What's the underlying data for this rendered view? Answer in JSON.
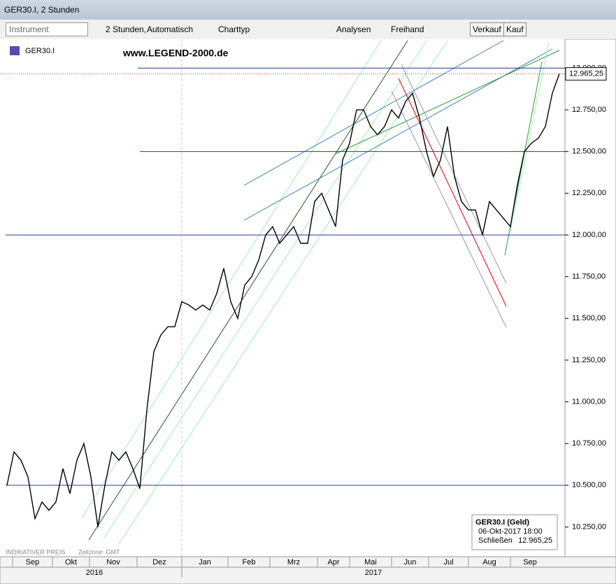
{
  "window": {
    "title": "GER30.I, 2 Stunden"
  },
  "toolbar": {
    "instrument": "Instrument",
    "interval": "2 Stunden,",
    "mode": "Automatisch",
    "chart_type": "Charttyp",
    "analyses": "Analysen",
    "freehand": "Freihand",
    "sell": "Verkauf",
    "buy": "Kauf"
  },
  "chart_data": {
    "type": "line",
    "symbol": "GER30.I",
    "watermark": "www.LEGEND-2000.de",
    "color": "#000000",
    "values": [
      10500,
      10700,
      10650,
      10550,
      10300,
      10400,
      10350,
      10400,
      10600,
      10450,
      10650,
      10750,
      10550,
      10250,
      10500,
      10700,
      10650,
      10700,
      10600,
      10480,
      10950,
      11300,
      11400,
      11450,
      11450,
      11600,
      11580,
      11550,
      11580,
      11550,
      11650,
      11800,
      11600,
      11500,
      11700,
      11750,
      11850,
      12000,
      12050,
      11950,
      12000,
      12050,
      11950,
      11950,
      12200,
      12250,
      12150,
      12050,
      12450,
      12550,
      12750,
      12750,
      12650,
      12600,
      12650,
      12750,
      12700,
      12800,
      12850,
      12700,
      12500,
      12350,
      12450,
      12650,
      12350,
      12200,
      12150,
      12150,
      12000,
      12200,
      12150,
      12100,
      12050,
      12300,
      12500,
      12550,
      12580,
      12650,
      12850,
      12965.25
    ],
    "last_label": "12.965,25",
    "ylim": [
      10076,
      13165
    ],
    "yticks": [
      {
        "value": 10250,
        "label": "10.250,00"
      },
      {
        "value": 10500,
        "label": "10.500,00"
      },
      {
        "value": 10750,
        "label": "10.750,00"
      },
      {
        "value": 11000,
        "label": "11.000,00"
      },
      {
        "value": 11250,
        "label": "11.250,00"
      },
      {
        "value": 11500,
        "label": "11.500,00"
      },
      {
        "value": 11750,
        "label": "11.750,00"
      },
      {
        "value": 12000,
        "label": "12.000,00"
      },
      {
        "value": 12250,
        "label": "12.250,00"
      },
      {
        "value": 12500,
        "label": "12.500,00"
      },
      {
        "value": 12750,
        "label": "12.750,00"
      },
      {
        "value": 13000,
        "label": "13.000,00"
      }
    ],
    "horizontal_lines": [
      10500,
      12000,
      12500,
      13000
    ],
    "months": [
      "Sep",
      "Okt",
      "Nov",
      "Dez",
      "Jan",
      "Feb",
      "Mrz",
      "Apr",
      "Mai",
      "Jun",
      "Jul",
      "Aug",
      "Sep"
    ],
    "years": [
      "2016",
      "2017"
    ],
    "info_box": {
      "title": "GER30.I (Geld)",
      "date": "06-Okt-2017 18:00",
      "close_label": "Schließen",
      "close": "12.965,25"
    },
    "footer": {
      "price_note": "INDIKATIVER PREIS",
      "timezone": "Zeitzone: GMT"
    }
  }
}
